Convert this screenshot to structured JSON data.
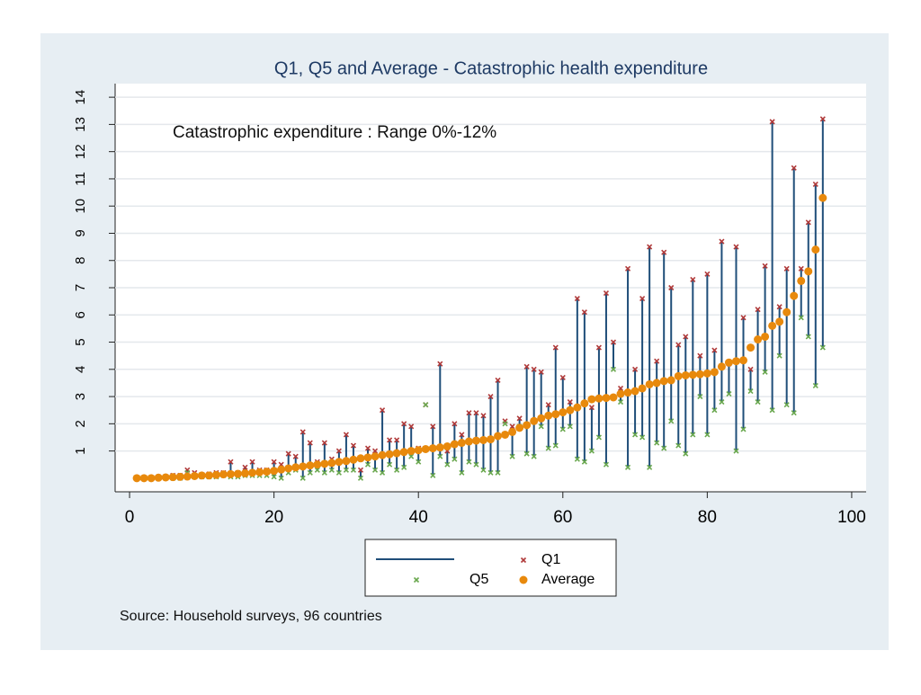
{
  "chart_data": {
    "type": "range-scatter",
    "title": "Q1, Q5 and Average - Catastrophic health expenditure",
    "annotation": "Catastrophic expenditure : Range 0%-12%",
    "source": "Source: Household surveys, 96 countries",
    "x": [
      1,
      2,
      3,
      4,
      5,
      6,
      7,
      8,
      9,
      10,
      11,
      12,
      13,
      14,
      15,
      16,
      17,
      18,
      19,
      20,
      21,
      22,
      23,
      24,
      25,
      26,
      27,
      28,
      29,
      30,
      31,
      32,
      33,
      34,
      35,
      36,
      37,
      38,
      39,
      40,
      41,
      42,
      43,
      44,
      45,
      46,
      47,
      48,
      49,
      50,
      51,
      52,
      53,
      54,
      55,
      56,
      57,
      58,
      59,
      60,
      61,
      62,
      63,
      64,
      65,
      66,
      67,
      68,
      69,
      70,
      71,
      72,
      73,
      74,
      75,
      76,
      77,
      78,
      79,
      80,
      81,
      82,
      83,
      84,
      85,
      86,
      87,
      88,
      89,
      90,
      91,
      92,
      93,
      94,
      95,
      96
    ],
    "series": [
      {
        "name": "Q1",
        "color": "#b03a3a",
        "marker": "x",
        "values": [
          0,
          0,
          0,
          0.05,
          0.05,
          0.1,
          0.1,
          0.3,
          0.2,
          0.1,
          0.15,
          0.2,
          0.2,
          0.6,
          0.2,
          0.4,
          0.6,
          0.3,
          0.3,
          0.6,
          0.5,
          0.9,
          0.8,
          1.7,
          1.3,
          0.6,
          1.3,
          0.7,
          1.0,
          1.6,
          1.2,
          0.3,
          1.1,
          1.0,
          2.5,
          1.4,
          1.4,
          2.0,
          1.9,
          1.1,
          2.7,
          1.9,
          4.2,
          1.0,
          2.0,
          1.6,
          2.4,
          2.4,
          2.3,
          3.0,
          3.6,
          2.1,
          1.9,
          2.2,
          4.1,
          4.0,
          3.9,
          2.7,
          4.8,
          3.7,
          2.8,
          6.6,
          6.1,
          2.6,
          4.8,
          6.8,
          5.0,
          3.3,
          7.7,
          4.0,
          6.6,
          8.5,
          4.3,
          8.3,
          7.0,
          4.9,
          5.2,
          7.3,
          4.5,
          7.5,
          4.7,
          8.7,
          4.2,
          8.5,
          5.9,
          4.0,
          6.2,
          7.8,
          13.1,
          6.3,
          7.7,
          11.4,
          7.7,
          9.4,
          10.8,
          13.2
        ]
      },
      {
        "name": "Q5",
        "color": "#6aa84f",
        "marker": "x",
        "values": [
          0,
          0,
          0,
          0,
          0,
          0,
          0,
          0.2,
          0.05,
          0.05,
          0.05,
          0.05,
          0.1,
          0.05,
          0.05,
          0.1,
          0.1,
          0.1,
          0.1,
          0.05,
          0,
          0.2,
          0.3,
          0,
          0.2,
          0.3,
          0.2,
          0.3,
          0.2,
          0.3,
          0.3,
          0,
          0.5,
          0.3,
          0.2,
          0.5,
          0.3,
          0.4,
          0.8,
          0.6,
          2.7,
          0.1,
          0.8,
          0.5,
          0.7,
          0.2,
          0.6,
          0.5,
          0.3,
          0.2,
          0.2,
          2.0,
          0.8,
          1.9,
          0.9,
          0.8,
          1.9,
          1.1,
          1.2,
          1.8,
          1.9,
          0.7,
          0.6,
          1.0,
          1.5,
          0.5,
          4.0,
          2.8,
          0.4,
          1.6,
          1.5,
          0.4,
          1.3,
          1.1,
          2.1,
          1.2,
          0.9,
          1.6,
          3.0,
          1.6,
          2.5,
          2.8,
          3.1,
          1.0,
          1.8,
          3.2,
          2.8,
          3.9,
          2.5,
          4.5,
          2.7,
          2.4,
          5.9,
          5.2,
          3.4,
          4.8
        ]
      },
      {
        "name": "Average",
        "color": "#e8890c",
        "marker": "dot",
        "values": [
          0,
          0,
          0,
          0.02,
          0.03,
          0.04,
          0.05,
          0.06,
          0.08,
          0.1,
          0.1,
          0.12,
          0.14,
          0.15,
          0.16,
          0.18,
          0.2,
          0.22,
          0.24,
          0.27,
          0.32,
          0.36,
          0.4,
          0.43,
          0.47,
          0.5,
          0.53,
          0.56,
          0.6,
          0.63,
          0.68,
          0.73,
          0.76,
          0.8,
          0.85,
          0.88,
          0.92,
          0.96,
          1.0,
          1.03,
          1.07,
          1.1,
          1.13,
          1.17,
          1.25,
          1.3,
          1.35,
          1.38,
          1.4,
          1.43,
          1.55,
          1.6,
          1.7,
          1.85,
          1.95,
          2.1,
          2.2,
          2.3,
          2.35,
          2.42,
          2.5,
          2.6,
          2.75,
          2.9,
          2.93,
          2.95,
          2.97,
          3.1,
          3.15,
          3.2,
          3.3,
          3.45,
          3.5,
          3.57,
          3.6,
          3.75,
          3.78,
          3.8,
          3.82,
          3.85,
          3.9,
          4.1,
          4.25,
          4.3,
          4.33,
          4.8,
          5.1,
          5.2,
          5.6,
          5.75,
          6.1,
          6.7,
          7.25,
          7.6,
          8.4,
          10.3
        ]
      }
    ],
    "range_color": "#1f4e79",
    "xlim": [
      -2,
      102
    ],
    "xticks": [
      0,
      20,
      40,
      60,
      80,
      100
    ],
    "ylim": [
      -0.5,
      14.5
    ],
    "yticks": [
      1,
      2,
      3,
      4,
      5,
      6,
      7,
      8,
      9,
      10,
      11,
      12,
      13,
      14
    ],
    "grid": true
  }
}
